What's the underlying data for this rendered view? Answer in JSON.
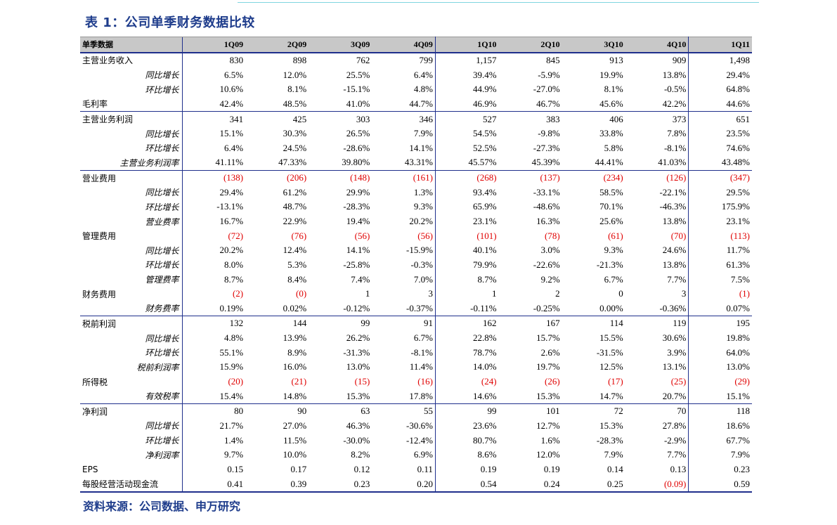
{
  "title": "表 1：公司单季财务数据比较",
  "source": "资料来源：公司数据、申万研究",
  "header": {
    "label": "单季数据",
    "periods": [
      "1Q09",
      "2Q09",
      "3Q09",
      "4Q09",
      "1Q10",
      "2Q10",
      "3Q10",
      "4Q10",
      "1Q11"
    ]
  },
  "rows": [
    {
      "label": "主营业务收入",
      "sub": false,
      "group_start": false,
      "values": [
        "830",
        "898",
        "762",
        "799",
        "1,157",
        "845",
        "913",
        "909",
        "1,498"
      ]
    },
    {
      "label": "同比增长",
      "sub": true,
      "group_start": false,
      "values": [
        "6.5%",
        "12.0%",
        "25.5%",
        "6.4%",
        "39.4%",
        "-5.9%",
        "19.9%",
        "13.8%",
        "29.4%"
      ]
    },
    {
      "label": "环比增长",
      "sub": true,
      "group_start": false,
      "values": [
        "10.6%",
        "8.1%",
        "-15.1%",
        "4.8%",
        "44.9%",
        "-27.0%",
        "8.1%",
        "-0.5%",
        "64.8%"
      ]
    },
    {
      "label": "毛利率",
      "sub": false,
      "group_start": false,
      "values": [
        "42.4%",
        "48.5%",
        "41.0%",
        "44.7%",
        "46.9%",
        "46.7%",
        "45.6%",
        "42.2%",
        "44.6%"
      ]
    },
    {
      "label": "主营业务利润",
      "sub": false,
      "group_start": true,
      "values": [
        "341",
        "425",
        "303",
        "346",
        "527",
        "383",
        "406",
        "373",
        "651"
      ]
    },
    {
      "label": "同比增长",
      "sub": true,
      "group_start": false,
      "values": [
        "15.1%",
        "30.3%",
        "26.5%",
        "7.9%",
        "54.5%",
        "-9.8%",
        "33.8%",
        "7.8%",
        "23.5%"
      ]
    },
    {
      "label": "环比增长",
      "sub": true,
      "group_start": false,
      "values": [
        "6.4%",
        "24.5%",
        "-28.6%",
        "14.1%",
        "52.5%",
        "-27.3%",
        "5.8%",
        "-8.1%",
        "74.6%"
      ]
    },
    {
      "label": "主营业务利润率",
      "sub": true,
      "group_start": false,
      "values": [
        "41.11%",
        "47.33%",
        "39.80%",
        "43.31%",
        "45.57%",
        "45.39%",
        "44.41%",
        "41.03%",
        "43.48%"
      ]
    },
    {
      "label": "营业费用",
      "sub": false,
      "group_start": true,
      "values": [
        "(138)",
        "(206)",
        "(148)",
        "(161)",
        "(268)",
        "(137)",
        "(234)",
        "(126)",
        "(347)"
      ]
    },
    {
      "label": "同比增长",
      "sub": true,
      "group_start": false,
      "values": [
        "29.4%",
        "61.2%",
        "29.9%",
        "1.3%",
        "93.4%",
        "-33.1%",
        "58.5%",
        "-22.1%",
        "29.5%"
      ]
    },
    {
      "label": "环比增长",
      "sub": true,
      "group_start": false,
      "values": [
        "-13.1%",
        "48.7%",
        "-28.3%",
        "9.3%",
        "65.9%",
        "-48.6%",
        "70.1%",
        "-46.3%",
        "175.9%"
      ]
    },
    {
      "label": "营业费率",
      "sub": true,
      "group_start": false,
      "values": [
        "16.7%",
        "22.9%",
        "19.4%",
        "20.2%",
        "23.1%",
        "16.3%",
        "25.6%",
        "13.8%",
        "23.1%"
      ]
    },
    {
      "label": "管理费用",
      "sub": false,
      "group_start": false,
      "values": [
        "(72)",
        "(76)",
        "(56)",
        "(56)",
        "(101)",
        "(78)",
        "(61)",
        "(70)",
        "(113)"
      ]
    },
    {
      "label": "同比增长",
      "sub": true,
      "group_start": false,
      "values": [
        "20.2%",
        "12.4%",
        "14.1%",
        "-15.9%",
        "40.1%",
        "3.0%",
        "9.3%",
        "24.6%",
        "11.7%"
      ]
    },
    {
      "label": "环比增长",
      "sub": true,
      "group_start": false,
      "values": [
        "8.0%",
        "5.3%",
        "-25.8%",
        "-0.3%",
        "79.9%",
        "-22.6%",
        "-21.3%",
        "13.8%",
        "61.3%"
      ]
    },
    {
      "label": "管理费率",
      "sub": true,
      "group_start": false,
      "values": [
        "8.7%",
        "8.4%",
        "7.4%",
        "7.0%",
        "8.7%",
        "9.2%",
        "6.7%",
        "7.7%",
        "7.5%"
      ]
    },
    {
      "label": "财务费用",
      "sub": false,
      "group_start": false,
      "values": [
        "(2)",
        "(0)",
        "1",
        "3",
        "1",
        "2",
        "0",
        "3",
        "(1)"
      ]
    },
    {
      "label": "财务费率",
      "sub": true,
      "group_start": false,
      "values": [
        "0.19%",
        "0.02%",
        "-0.12%",
        "-0.37%",
        "-0.11%",
        "-0.25%",
        "0.00%",
        "-0.36%",
        "0.07%"
      ]
    },
    {
      "label": "税前利润",
      "sub": false,
      "group_start": true,
      "values": [
        "132",
        "144",
        "99",
        "91",
        "162",
        "167",
        "114",
        "119",
        "195"
      ]
    },
    {
      "label": "同比增长",
      "sub": true,
      "group_start": false,
      "values": [
        "4.8%",
        "13.9%",
        "26.2%",
        "6.7%",
        "22.8%",
        "15.7%",
        "15.5%",
        "30.6%",
        "19.8%"
      ]
    },
    {
      "label": "环比增长",
      "sub": true,
      "group_start": false,
      "values": [
        "55.1%",
        "8.9%",
        "-31.3%",
        "-8.1%",
        "78.7%",
        "2.6%",
        "-31.5%",
        "3.9%",
        "64.0%"
      ]
    },
    {
      "label": "税前利润率",
      "sub": true,
      "group_start": false,
      "values": [
        "15.9%",
        "16.0%",
        "13.0%",
        "11.4%",
        "14.0%",
        "19.7%",
        "12.5%",
        "13.1%",
        "13.0%"
      ]
    },
    {
      "label": "所得税",
      "sub": false,
      "group_start": false,
      "values": [
        "(20)",
        "(21)",
        "(15)",
        "(16)",
        "(24)",
        "(26)",
        "(17)",
        "(25)",
        "(29)"
      ]
    },
    {
      "label": "有效税率",
      "sub": true,
      "group_start": false,
      "values": [
        "15.4%",
        "14.8%",
        "15.3%",
        "17.8%",
        "14.6%",
        "15.3%",
        "14.7%",
        "20.7%",
        "15.1%"
      ]
    },
    {
      "label": "净利润",
      "sub": false,
      "group_start": true,
      "values": [
        "80",
        "90",
        "63",
        "55",
        "99",
        "101",
        "72",
        "70",
        "118"
      ]
    },
    {
      "label": "同比增长",
      "sub": true,
      "group_start": false,
      "values": [
        "21.7%",
        "27.0%",
        "46.3%",
        "-30.6%",
        "23.6%",
        "12.7%",
        "15.3%",
        "27.8%",
        "18.6%"
      ]
    },
    {
      "label": "环比增长",
      "sub": true,
      "group_start": false,
      "values": [
        "1.4%",
        "11.5%",
        "-30.0%",
        "-12.4%",
        "80.7%",
        "1.6%",
        "-28.3%",
        "-2.9%",
        "67.7%"
      ]
    },
    {
      "label": "净利润率",
      "sub": true,
      "group_start": false,
      "values": [
        "9.7%",
        "10.0%",
        "8.2%",
        "6.9%",
        "8.6%",
        "12.0%",
        "7.9%",
        "7.7%",
        "7.9%"
      ]
    },
    {
      "label": "EPS",
      "sub": false,
      "group_start": false,
      "values": [
        "0.15",
        "0.17",
        "0.12",
        "0.11",
        "0.19",
        "0.19",
        "0.14",
        "0.13",
        "0.23"
      ]
    },
    {
      "label": "每股经营活动现金流",
      "sub": false,
      "group_start": false,
      "values": [
        "0.41",
        "0.39",
        "0.23",
        "0.20",
        "0.54",
        "0.24",
        "0.25",
        "(0.09)",
        "0.59"
      ]
    }
  ],
  "colors": {
    "title": "#1f3d8c",
    "negative": "#e00000",
    "rule": "#1f2f8c",
    "header_bg": "#c8c8c8"
  }
}
